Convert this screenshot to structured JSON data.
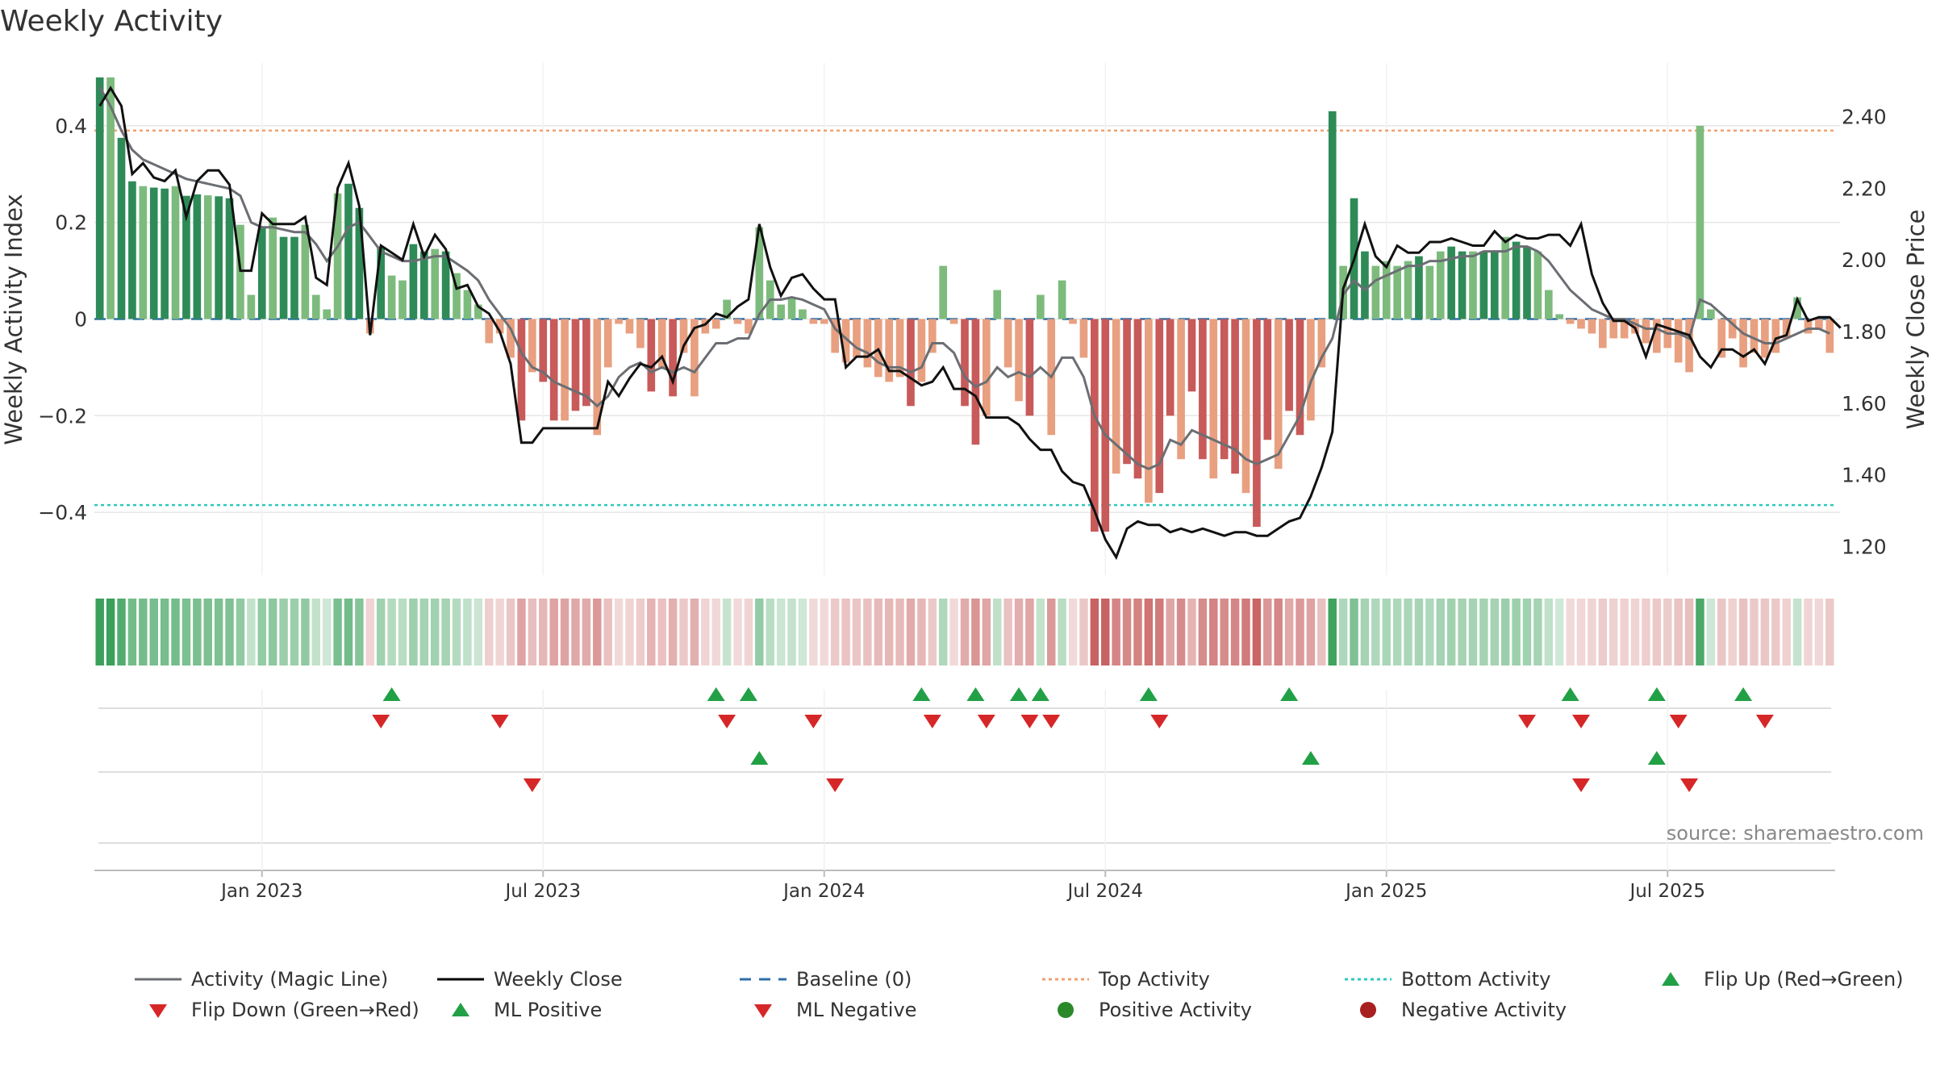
{
  "chart_data": {
    "type": "bar+line",
    "title": "Weekly Activity",
    "ylabel_left": "Weekly Activity Index",
    "ylabel_right": "Weekly Close Price",
    "source": "source: sharemaestro.com",
    "left_axis": {
      "ylim": [
        -0.53,
        0.53
      ],
      "ticks": [
        0.4,
        0.2,
        0,
        -0.2,
        -0.4
      ],
      "tick_labels": [
        "0.4",
        "0.2",
        "0",
        "−0.2",
        "−0.4"
      ]
    },
    "right_axis": {
      "ylim": [
        1.12,
        2.55
      ],
      "ticks": [
        2.4,
        2.2,
        2.0,
        1.8,
        1.6,
        1.4,
        1.2
      ],
      "tick_labels": [
        "2.40",
        "2.20",
        "2.00",
        "1.80",
        "1.60",
        "1.40",
        "1.20"
      ]
    },
    "x_axis": {
      "weeks_total": 162,
      "tick_weeks": [
        15,
        41,
        67,
        93,
        119,
        145
      ],
      "tick_labels": [
        "Jan 2023",
        "Jul 2023",
        "Jan 2024",
        "Jul 2024",
        "Jan 2025",
        "Jul 2025"
      ]
    },
    "top_activity": 0.39,
    "bottom_activity": -0.385,
    "baseline": 0,
    "activity": [
      0.5,
      0.5,
      0.375,
      0.285,
      0.275,
      0.272,
      0.27,
      0.275,
      0.255,
      0.258,
      0.256,
      0.254,
      0.25,
      0.195,
      0.05,
      0.19,
      0.21,
      0.17,
      0.17,
      0.195,
      0.05,
      0.02,
      0.26,
      0.28,
      0.23,
      -0.03,
      0.15,
      0.09,
      0.08,
      0.155,
      0.14,
      0.145,
      0.14,
      0.095,
      0.06,
      0.03,
      -0.05,
      -0.03,
      -0.08,
      -0.21,
      -0.11,
      -0.13,
      -0.21,
      -0.21,
      -0.19,
      -0.18,
      -0.24,
      -0.1,
      -0.01,
      -0.03,
      -0.06,
      -0.15,
      -0.1,
      -0.16,
      -0.07,
      -0.16,
      -0.03,
      -0.02,
      0.04,
      -0.01,
      -0.03,
      0.19,
      0.08,
      0.03,
      0.045,
      0.02,
      -0.01,
      -0.01,
      -0.07,
      -0.09,
      -0.08,
      -0.1,
      -0.12,
      -0.13,
      -0.12,
      -0.18,
      -0.13,
      -0.07,
      0.11,
      -0.01,
      -0.18,
      -0.26,
      -0.2,
      0.06,
      -0.1,
      -0.17,
      -0.2,
      0.05,
      -0.24,
      0.08,
      -0.01,
      -0.08,
      -0.44,
      -0.44,
      -0.32,
      -0.3,
      -0.33,
      -0.38,
      -0.36,
      -0.2,
      -0.29,
      -0.15,
      -0.29,
      -0.33,
      -0.29,
      -0.32,
      -0.36,
      -0.43,
      -0.25,
      -0.31,
      -0.19,
      -0.24,
      -0.21,
      -0.1,
      0.43,
      0.11,
      0.25,
      0.14,
      0.11,
      0.12,
      0.11,
      0.12,
      0.13,
      0.11,
      0.14,
      0.15,
      0.14,
      0.14,
      0.14,
      0.14,
      0.17,
      0.16,
      0.15,
      0.14,
      0.06,
      0.01,
      -0.01,
      -0.02,
      -0.03,
      -0.06,
      -0.04,
      -0.04,
      -0.03,
      -0.05,
      -0.07,
      -0.06,
      -0.09,
      -0.11,
      0.4,
      0.02,
      -0.08,
      -0.04,
      -0.1,
      -0.07,
      -0.08,
      -0.07,
      -0.04,
      0.045,
      -0.03,
      -0.02,
      -0.07
    ],
    "magic_line": [
      0.48,
      0.44,
      0.39,
      0.35,
      0.33,
      0.32,
      0.31,
      0.3,
      0.29,
      0.285,
      0.28,
      0.275,
      0.27,
      0.255,
      0.2,
      0.19,
      0.19,
      0.185,
      0.18,
      0.18,
      0.155,
      0.12,
      0.15,
      0.19,
      0.2,
      0.17,
      0.14,
      0.13,
      0.12,
      0.12,
      0.125,
      0.13,
      0.13,
      0.115,
      0.1,
      0.08,
      0.04,
      0.01,
      -0.02,
      -0.07,
      -0.1,
      -0.11,
      -0.13,
      -0.14,
      -0.15,
      -0.16,
      -0.18,
      -0.16,
      -0.12,
      -0.1,
      -0.09,
      -0.11,
      -0.1,
      -0.11,
      -0.1,
      -0.11,
      -0.08,
      -0.05,
      -0.05,
      -0.04,
      -0.04,
      0.01,
      0.04,
      0.04,
      0.045,
      0.04,
      0.03,
      0.02,
      -0.02,
      -0.04,
      -0.06,
      -0.07,
      -0.09,
      -0.1,
      -0.1,
      -0.11,
      -0.1,
      -0.05,
      -0.05,
      -0.07,
      -0.12,
      -0.14,
      -0.13,
      -0.1,
      -0.12,
      -0.11,
      -0.12,
      -0.1,
      -0.12,
      -0.08,
      -0.08,
      -0.12,
      -0.2,
      -0.24,
      -0.26,
      -0.28,
      -0.3,
      -0.31,
      -0.3,
      -0.25,
      -0.26,
      -0.23,
      -0.24,
      -0.25,
      -0.26,
      -0.27,
      -0.29,
      -0.3,
      -0.29,
      -0.28,
      -0.24,
      -0.2,
      -0.13,
      -0.08,
      -0.04,
      0.05,
      0.08,
      0.06,
      0.08,
      0.09,
      0.1,
      0.11,
      0.11,
      0.12,
      0.12,
      0.125,
      0.13,
      0.13,
      0.14,
      0.14,
      0.14,
      0.15,
      0.15,
      0.14,
      0.12,
      0.09,
      0.06,
      0.04,
      0.02,
      0.01,
      0.0,
      0.0,
      -0.01,
      -0.02,
      -0.02,
      -0.03,
      -0.03,
      -0.04,
      0.04,
      0.03,
      0.01,
      -0.01,
      -0.03,
      -0.04,
      -0.05,
      -0.05,
      -0.04,
      -0.03,
      -0.02,
      -0.02,
      -0.03
    ],
    "weekly_close": [
      2.43,
      2.48,
      2.43,
      2.24,
      2.27,
      2.23,
      2.22,
      2.25,
      2.12,
      2.22,
      2.25,
      2.25,
      2.21,
      1.97,
      1.97,
      2.13,
      2.1,
      2.1,
      2.1,
      2.12,
      1.95,
      1.93,
      2.2,
      2.27,
      2.15,
      1.79,
      2.04,
      2.02,
      2.0,
      2.1,
      2.01,
      2.07,
      2.03,
      1.92,
      1.93,
      1.87,
      1.85,
      1.8,
      1.71,
      1.49,
      1.49,
      1.53,
      1.53,
      1.53,
      1.53,
      1.53,
      1.53,
      1.66,
      1.62,
      1.67,
      1.71,
      1.7,
      1.73,
      1.66,
      1.76,
      1.81,
      1.82,
      1.85,
      1.84,
      1.87,
      1.89,
      2.1,
      1.98,
      1.9,
      1.95,
      1.96,
      1.92,
      1.89,
      1.89,
      1.7,
      1.73,
      1.73,
      1.75,
      1.69,
      1.69,
      1.67,
      1.65,
      1.66,
      1.7,
      1.64,
      1.64,
      1.62,
      1.56,
      1.56,
      1.56,
      1.54,
      1.5,
      1.47,
      1.47,
      1.41,
      1.38,
      1.37,
      1.3,
      1.22,
      1.17,
      1.25,
      1.27,
      1.26,
      1.26,
      1.24,
      1.25,
      1.24,
      1.25,
      1.24,
      1.23,
      1.24,
      1.24,
      1.23,
      1.23,
      1.25,
      1.27,
      1.28,
      1.34,
      1.42,
      1.52,
      1.92,
      2.0,
      2.1,
      2.01,
      1.98,
      2.04,
      2.02,
      2.02,
      2.05,
      2.05,
      2.06,
      2.05,
      2.04,
      2.04,
      2.08,
      2.05,
      2.07,
      2.06,
      2.06,
      2.07,
      2.07,
      2.04,
      2.1,
      1.96,
      1.88,
      1.83,
      1.83,
      1.81,
      1.73,
      1.82,
      1.81,
      1.8,
      1.79,
      1.73,
      1.7,
      1.75,
      1.75,
      1.73,
      1.75,
      1.71,
      1.78,
      1.79,
      1.89,
      1.83,
      1.84,
      1.84,
      1.81
    ],
    "flip_up_weeks": [
      27,
      57,
      60,
      76,
      81,
      85,
      87,
      97,
      110,
      136,
      144,
      152
    ],
    "flip_down_weeks": [
      26,
      37,
      58,
      66,
      77,
      82,
      86,
      88,
      98,
      132,
      137,
      146,
      154
    ],
    "ml_positive_weeks": [
      61,
      112,
      144
    ],
    "ml_negative_weeks": [
      40,
      68,
      137,
      147
    ],
    "legend": [
      {
        "label": "Activity (Magic Line)",
        "kind": "line",
        "color": "#6b6e73"
      },
      {
        "label": "Weekly Close",
        "kind": "line",
        "color": "#000000"
      },
      {
        "label": "Baseline (0)",
        "kind": "dashed",
        "color": "#2e6fa8"
      },
      {
        "label": "Top Activity",
        "kind": "dotted",
        "color": "#f0a070"
      },
      {
        "label": "Bottom Activity",
        "kind": "dotted",
        "color": "#2ec9c0"
      },
      {
        "label": "Flip Up (Red→Green)",
        "kind": "tri-up",
        "color": "#22a046"
      },
      {
        "label": "Flip Down (Green→Red)",
        "kind": "tri-down",
        "color": "#d62728"
      },
      {
        "label": "ML Positive",
        "kind": "tri-up",
        "color": "#22a046"
      },
      {
        "label": "ML Negative",
        "kind": "tri-down",
        "color": "#d62728"
      },
      {
        "label": "Positive Activity",
        "kind": "dot",
        "color": "#2a8a2a"
      },
      {
        "label": "Negative Activity",
        "kind": "dot",
        "color": "#a82020"
      }
    ]
  },
  "colors": {
    "pos_dark": "#2e8b57",
    "pos_light": "#7dbb7d",
    "neg_dark": "#c85a5a",
    "neg_light": "#e8a080",
    "ribbon_pos": "#3aa05a",
    "ribbon_neg": "#c86060",
    "grid": "#e6e6e6",
    "axis": "#bbbbbb"
  }
}
